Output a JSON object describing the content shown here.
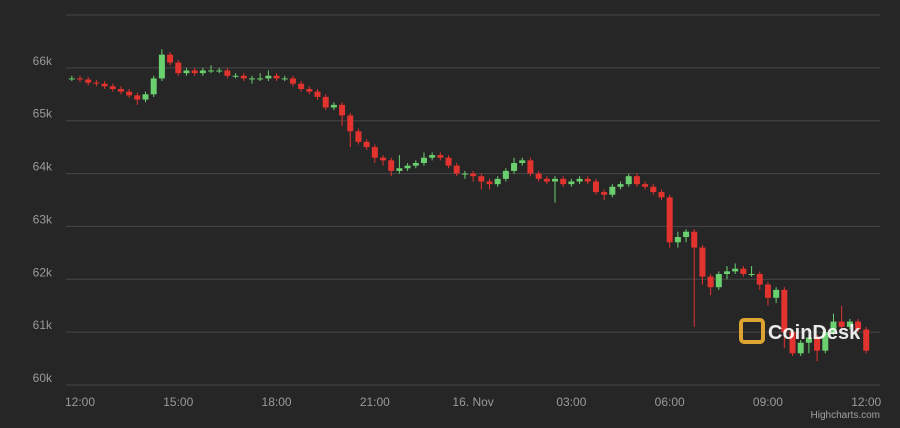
{
  "chart_data": {
    "type": "candlestick",
    "categories": [
      null,
      "12:00",
      null,
      null,
      null,
      null,
      null,
      null,
      null,
      null,
      null,
      null,
      null,
      "15:00",
      null,
      null,
      null,
      null,
      null,
      null,
      null,
      null,
      null,
      null,
      null,
      "18:00",
      null,
      null,
      null,
      null,
      null,
      null,
      null,
      null,
      null,
      null,
      null,
      "21:00",
      null,
      null,
      null,
      null,
      null,
      null,
      null,
      null,
      null,
      null,
      null,
      "16. Nov",
      null,
      null,
      null,
      null,
      null,
      null,
      null,
      null,
      null,
      null,
      null,
      "03:00",
      null,
      null,
      null,
      null,
      null,
      null,
      null,
      null,
      null,
      null,
      null,
      "06:00",
      null,
      null,
      null,
      null,
      null,
      null,
      null,
      null,
      null,
      null,
      null,
      "09:00",
      null,
      null,
      null,
      null,
      null,
      null,
      null,
      null,
      null,
      null,
      null,
      "12:00"
    ],
    "open": [
      65800,
      65800,
      65780,
      65720,
      65700,
      65650,
      65600,
      65550,
      65480,
      65400,
      65500,
      65800,
      66250,
      66100,
      65900,
      65950,
      65900,
      65950,
      65950,
      65950,
      65850,
      65850,
      65800,
      65800,
      65800,
      65850,
      65800,
      65800,
      65700,
      65600,
      65550,
      65450,
      65250,
      65300,
      65100,
      64800,
      64600,
      64500,
      64300,
      64250,
      64050,
      64100,
      64150,
      64200,
      64300,
      64350,
      64300,
      64150,
      64000,
      64000,
      63950,
      63850,
      63800,
      63900,
      64050,
      64200,
      64250,
      64000,
      63900,
      63850,
      63900,
      63800,
      63850,
      63900,
      63850,
      63650,
      63600,
      63750,
      63800,
      63950,
      63800,
      63750,
      63650,
      63550,
      62700,
      62800,
      62900,
      62600,
      62050,
      61850,
      62100,
      62150,
      62200,
      62100,
      62100,
      61900,
      61650,
      61800,
      61000,
      60600,
      60800,
      60900,
      60650,
      61000,
      61200,
      61100,
      61200,
      61050
    ],
    "high": [
      65850,
      65850,
      65830,
      65770,
      65750,
      65700,
      65650,
      65600,
      65530,
      65550,
      65850,
      66350,
      66300,
      66150,
      66000,
      66000,
      66000,
      66050,
      66000,
      66000,
      65900,
      65900,
      65850,
      65900,
      65950,
      65900,
      65850,
      65850,
      65750,
      65650,
      65600,
      65500,
      65350,
      65350,
      65150,
      64850,
      64650,
      64550,
      64350,
      64300,
      64350,
      64200,
      64250,
      64400,
      64400,
      64400,
      64350,
      64200,
      64050,
      64050,
      64000,
      63900,
      63950,
      64100,
      64300,
      64300,
      64300,
      64050,
      63950,
      63950,
      63950,
      63900,
      63950,
      63950,
      63900,
      63700,
      63800,
      63850,
      64000,
      64000,
      63850,
      63800,
      63700,
      63600,
      62900,
      62950,
      62950,
      62650,
      62100,
      62150,
      62250,
      62300,
      62250,
      62250,
      62150,
      61950,
      61850,
      61850,
      61050,
      60850,
      60950,
      60950,
      61050,
      61350,
      61500,
      61250,
      61250,
      61100
    ],
    "low": [
      65750,
      65730,
      65670,
      65650,
      65600,
      65550,
      65500,
      65430,
      65300,
      65350,
      65450,
      65750,
      66050,
      65850,
      65850,
      65850,
      65850,
      65900,
      65900,
      65800,
      65800,
      65750,
      65700,
      65750,
      65750,
      65750,
      65750,
      65650,
      65550,
      65500,
      65400,
      65200,
      65200,
      64900,
      64500,
      64550,
      64450,
      64200,
      64150,
      63950,
      64000,
      64050,
      64100,
      64150,
      64250,
      64250,
      64100,
      63950,
      63900,
      63850,
      63700,
      63700,
      63750,
      63850,
      64000,
      64150,
      63950,
      63850,
      63800,
      63450,
      63750,
      63750,
      63800,
      63800,
      63600,
      63500,
      63550,
      63700,
      63750,
      63750,
      63700,
      63600,
      63500,
      62600,
      62600,
      62700,
      61100,
      61900,
      61700,
      61800,
      62000,
      62100,
      62050,
      62050,
      61800,
      61500,
      61550,
      60700,
      60550,
      60550,
      60600,
      60450,
      60600,
      60950,
      61050,
      61050,
      61000,
      60600
    ],
    "close": [
      65800,
      65780,
      65720,
      65700,
      65650,
      65600,
      65550,
      65480,
      65400,
      65500,
      65800,
      66250,
      66100,
      65900,
      65950,
      65900,
      65950,
      65950,
      65950,
      65850,
      65850,
      65800,
      65800,
      65800,
      65850,
      65800,
      65800,
      65700,
      65600,
      65550,
      65450,
      65250,
      65300,
      65100,
      64800,
      64600,
      64500,
      64300,
      64250,
      64050,
      64100,
      64150,
      64200,
      64300,
      64350,
      64300,
      64150,
      64000,
      64000,
      63950,
      63850,
      63800,
      63900,
      64050,
      64200,
      64250,
      64000,
      63900,
      63850,
      63900,
      63800,
      63850,
      63900,
      63850,
      63650,
      63600,
      63750,
      63800,
      63950,
      63800,
      63750,
      63650,
      63550,
      62700,
      62800,
      62900,
      62600,
      62050,
      61850,
      62100,
      62150,
      62200,
      62100,
      62100,
      61900,
      61650,
      61800,
      61000,
      60600,
      60800,
      60900,
      60650,
      61000,
      61200,
      61100,
      61200,
      61050,
      60650
    ],
    "up_color": "#6ad06f",
    "down_color": "#e2332e",
    "ylim": [
      60000,
      67000
    ],
    "yticks": [
      {
        "value": 60000,
        "label": "60k"
      },
      {
        "value": 61000,
        "label": "61k"
      },
      {
        "value": 62000,
        "label": "62k"
      },
      {
        "value": 63000,
        "label": "63k"
      },
      {
        "value": 64000,
        "label": "64k"
      },
      {
        "value": 65000,
        "label": "65k"
      },
      {
        "value": 66000,
        "label": "66k"
      }
    ],
    "grid": true,
    "watermark": "CoinDesk",
    "credits": "Highcharts.com"
  }
}
